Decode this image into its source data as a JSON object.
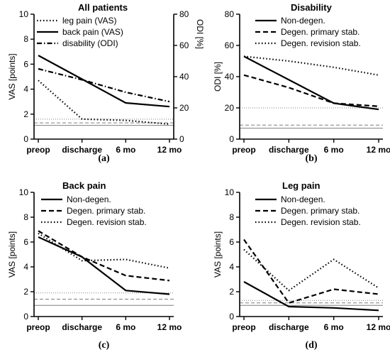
{
  "colors": {
    "line": "#000000",
    "reference": "#7f7f7f"
  },
  "chart_data": [
    {
      "id": "a",
      "type": "line",
      "title": "All patients",
      "caption": "(a)",
      "categories": [
        "preop",
        "discharge",
        "6 mo",
        "12 mo"
      ],
      "ylabel": "VAS [points]",
      "ylim": [
        0,
        10
      ],
      "yticks": [
        "0",
        "2",
        "4",
        "6",
        "8",
        "10"
      ],
      "y2label": "ODI [%]",
      "y2lim": [
        0,
        80
      ],
      "y2ticks": [
        "0",
        "20",
        "40",
        "60",
        "80"
      ],
      "legend_position": "top-left",
      "series": [
        {
          "name": "leg pain (VAS)",
          "style": "dotted",
          "axis": "left",
          "values": [
            4.7,
            1.6,
            1.5,
            1.2
          ]
        },
        {
          "name": "back pain (VAS)",
          "style": "solid",
          "axis": "left",
          "values": [
            6.7,
            4.8,
            2.9,
            2.6
          ]
        },
        {
          "name": "disability (ODI)",
          "style": "dashdot",
          "axis": "right",
          "values": [
            45,
            38,
            30,
            24
          ]
        }
      ],
      "reference_lines": [
        {
          "axis": "left",
          "value": 1.6,
          "style": "dotted"
        },
        {
          "axis": "left",
          "value": 1.3,
          "style": "dashed"
        },
        {
          "axis": "left",
          "value": 1.1,
          "style": "solid"
        }
      ]
    },
    {
      "id": "b",
      "type": "line",
      "title": "Disability",
      "caption": "(b)",
      "categories": [
        "preop",
        "discharge",
        "6 mo",
        "12 mo"
      ],
      "ylabel": "ODI [%]",
      "ylim": [
        0,
        80
      ],
      "yticks": [
        "0",
        "20",
        "40",
        "60",
        "80"
      ],
      "legend_position": "top-left",
      "series": [
        {
          "name": "Non-degen.",
          "style": "solid",
          "values": [
            53,
            38,
            23,
            19
          ]
        },
        {
          "name": "Degen. primary stab.",
          "style": "dashed",
          "values": [
            41,
            33,
            23,
            21
          ]
        },
        {
          "name": "Degen. revision stab.",
          "style": "dotted",
          "values": [
            53,
            50,
            46,
            41
          ]
        }
      ],
      "reference_lines": [
        {
          "value": 20,
          "style": "dotted"
        },
        {
          "value": 9,
          "style": "dashed"
        },
        {
          "value": 7,
          "style": "solid"
        }
      ]
    },
    {
      "id": "c",
      "type": "line",
      "title": "Back pain",
      "caption": "(c)",
      "categories": [
        "preop",
        "discharge",
        "6 mo",
        "12 mo"
      ],
      "ylabel": "VAS [points]",
      "ylim": [
        0,
        10
      ],
      "yticks": [
        "0",
        "2",
        "4",
        "6",
        "8",
        "10"
      ],
      "legend_position": "top-left",
      "series": [
        {
          "name": "Non-degen.",
          "style": "solid",
          "values": [
            6.4,
            4.8,
            2.1,
            1.8
          ]
        },
        {
          "name": "Degen. primary stab.",
          "style": "dashed",
          "values": [
            6.9,
            4.8,
            3.3,
            2.9
          ]
        },
        {
          "name": "Degen. revision stab.",
          "style": "dotted",
          "values": [
            6.7,
            4.5,
            4.6,
            3.9
          ]
        }
      ],
      "reference_lines": [
        {
          "value": 1.9,
          "style": "dotted"
        },
        {
          "value": 1.4,
          "style": "dashed"
        },
        {
          "value": 0.9,
          "style": "solid"
        }
      ]
    },
    {
      "id": "d",
      "type": "line",
      "title": "Leg pain",
      "caption": "(d)",
      "categories": [
        "preop",
        "discharge",
        "6 mo",
        "12 mo"
      ],
      "ylabel": "VAS [points]",
      "ylim": [
        0,
        10
      ],
      "yticks": [
        "0",
        "2",
        "4",
        "6",
        "8",
        "10"
      ],
      "legend_position": "top-left",
      "series": [
        {
          "name": "Non-degen.",
          "style": "solid",
          "values": [
            2.8,
            0.8,
            0.7,
            0.5
          ]
        },
        {
          "name": "Degen. primary stab.",
          "style": "dashed",
          "values": [
            6.2,
            1.1,
            2.2,
            1.8
          ]
        },
        {
          "name": "Degen. revision stab.",
          "style": "dotted",
          "values": [
            5.4,
            2.1,
            4.6,
            2.3
          ]
        }
      ],
      "reference_lines": [
        {
          "value": 1.3,
          "style": "dotted"
        },
        {
          "value": 1.1,
          "style": "dashed"
        },
        {
          "value": 0.9,
          "style": "solid"
        }
      ]
    }
  ]
}
